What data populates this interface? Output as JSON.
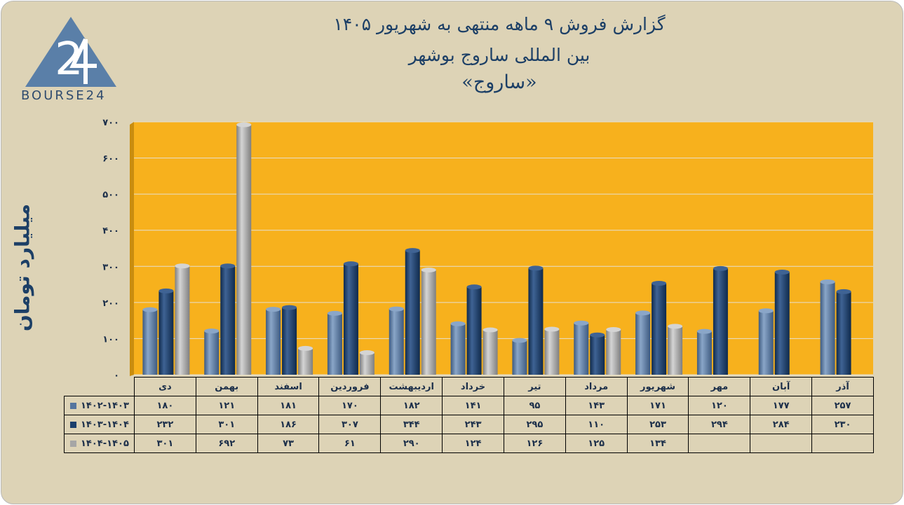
{
  "header": {
    "title_line1": "گزارش  فروش ۹ ماهه منتهی به شهریور ۱۴۰۵",
    "title_line2": "بین المللی ساروج بوشهر",
    "title_line3": "«ساروج»"
  },
  "logo": {
    "text": "BOURSE24",
    "icon": "bourse24-triangle-logo"
  },
  "colors": {
    "background": "#ddd3b6",
    "plot_area": "#f7b11d",
    "series1": "#55759f",
    "series2": "#1b3f6c",
    "series3": "#a6a6a6"
  },
  "chart_data": {
    "type": "bar",
    "title": "",
    "ylabel": "میلیارد تومان",
    "xlabel": "",
    "ylim": [
      0,
      700
    ],
    "yticks": [
      "۰",
      "۱۰۰",
      "۲۰۰",
      "۳۰۰",
      "۴۰۰",
      "۵۰۰",
      "۶۰۰",
      "۷۰۰"
    ],
    "grid": true,
    "legend": "table-below",
    "categories": [
      "دی",
      "بهمن",
      "اسفند",
      "فروردین",
      "اردیبهشت",
      "خرداد",
      "تیر",
      "مرداد",
      "شهریور",
      "مهر",
      "آبان",
      "آذر"
    ],
    "series": [
      {
        "name": "۱۴۰۲-۱۴۰۳",
        "values": [
          180,
          121,
          181,
          170,
          182,
          141,
          95,
          143,
          171,
          120,
          177,
          257
        ],
        "labels": [
          "۱۸۰",
          "۱۲۱",
          "۱۸۱",
          "۱۷۰",
          "۱۸۲",
          "۱۴۱",
          "۹۵",
          "۱۴۳",
          "۱۷۱",
          "۱۲۰",
          "۱۷۷",
          "۲۵۷"
        ]
      },
      {
        "name": "۱۴۰۳-۱۴۰۴",
        "values": [
          232,
          301,
          186,
          307,
          344,
          243,
          295,
          110,
          253,
          294,
          284,
          230
        ],
        "labels": [
          "۲۳۲",
          "۳۰۱",
          "۱۸۶",
          "۳۰۷",
          "۳۴۴",
          "۲۴۳",
          "۲۹۵",
          "۱۱۰",
          "۲۵۳",
          "۲۹۴",
          "۲۸۴",
          "۲۳۰"
        ]
      },
      {
        "name": "۱۴۰۴-۱۴۰۵",
        "values": [
          301,
          692,
          73,
          61,
          290,
          124,
          126,
          125,
          134,
          null,
          null,
          null
        ],
        "labels": [
          "۳۰۱",
          "۶۹۲",
          "۷۳",
          "۶۱",
          "۲۹۰",
          "۱۲۴",
          "۱۲۶",
          "۱۲۵",
          "۱۳۴",
          "",
          "",
          ""
        ]
      }
    ]
  }
}
